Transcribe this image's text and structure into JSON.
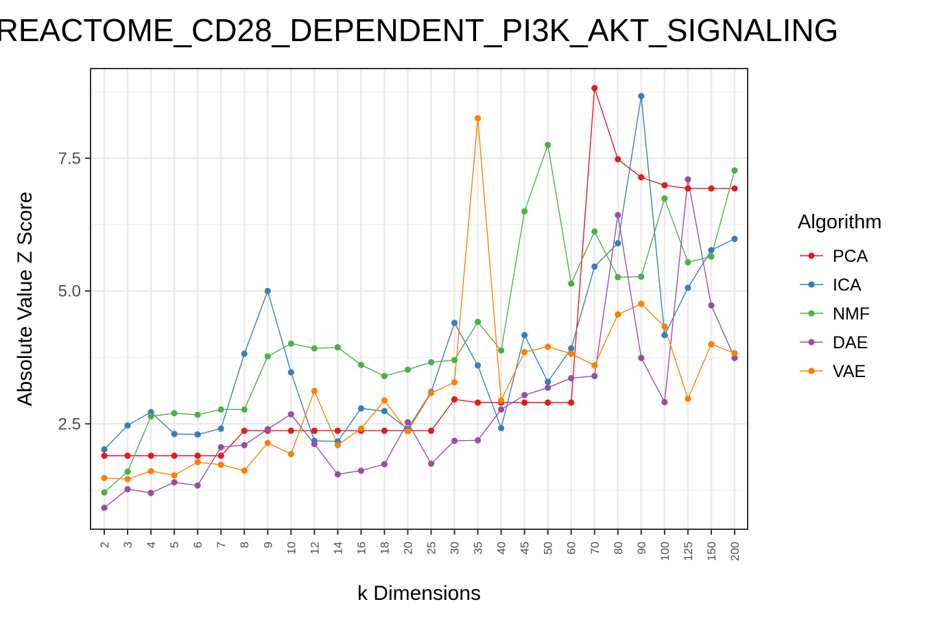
{
  "chart_data": {
    "type": "line",
    "title": "REACTOME_CD28_DEPENDENT_PI3K_AKT_SIGNALING",
    "xlabel": "k Dimensions",
    "ylabel": "Absolute Value Z Score",
    "x_scale": "categorical",
    "categories": [
      "2",
      "3",
      "4",
      "5",
      "6",
      "7",
      "8",
      "9",
      "10",
      "12",
      "14",
      "16",
      "18",
      "20",
      "25",
      "30",
      "35",
      "40",
      "45",
      "50",
      "60",
      "70",
      "80",
      "90",
      "100",
      "125",
      "150",
      "200"
    ],
    "y_ticks": [
      2.5,
      5.0,
      7.5
    ],
    "y_tick_labels": [
      "2.5",
      "5.0",
      "7.5"
    ],
    "ylim": [
      0.6,
      9.3
    ],
    "grid": true,
    "legend": {
      "title": "Algorithm",
      "position": "right"
    },
    "series": [
      {
        "name": "PCA",
        "color": "#e41a1c",
        "values": [
          1.9,
          1.9,
          1.9,
          1.9,
          1.9,
          1.9,
          2.37,
          2.37,
          2.37,
          2.37,
          2.37,
          2.37,
          2.37,
          2.37,
          2.37,
          2.96,
          2.9,
          2.9,
          2.9,
          2.9,
          2.9,
          8.82,
          7.48,
          7.14,
          6.99,
          6.93,
          6.93,
          6.93
        ]
      },
      {
        "name": "ICA",
        "color": "#377eb8",
        "values": [
          2.02,
          2.47,
          2.72,
          2.31,
          2.3,
          2.41,
          3.82,
          5.0,
          3.47,
          2.18,
          2.17,
          2.79,
          2.74,
          2.4,
          3.1,
          4.4,
          3.6,
          2.42,
          4.17,
          3.29,
          3.92,
          5.46,
          5.9,
          8.67,
          4.17,
          5.06,
          5.77,
          5.98
        ]
      },
      {
        "name": "NMF",
        "color": "#4daf4a",
        "values": [
          1.21,
          1.6,
          2.64,
          2.7,
          2.67,
          2.77,
          2.77,
          3.77,
          4.01,
          3.92,
          3.94,
          3.61,
          3.4,
          3.52,
          3.66,
          3.7,
          4.42,
          3.88,
          6.5,
          7.75,
          5.14,
          6.12,
          5.26,
          5.27,
          6.74,
          5.54,
          5.65,
          7.27
        ]
      },
      {
        "name": "DAE",
        "color": "#984ea3",
        "values": [
          0.92,
          1.27,
          1.2,
          1.4,
          1.34,
          2.06,
          2.1,
          2.4,
          2.68,
          2.12,
          1.55,
          1.62,
          1.74,
          2.53,
          1.75,
          2.18,
          2.19,
          2.77,
          3.04,
          3.18,
          3.36,
          3.4,
          6.43,
          3.74,
          2.91,
          7.1,
          4.73,
          3.74
        ]
      },
      {
        "name": "VAE",
        "color": "#ff7f00",
        "values": [
          1.48,
          1.46,
          1.61,
          1.53,
          1.78,
          1.73,
          1.62,
          2.14,
          1.93,
          3.12,
          2.1,
          2.41,
          2.94,
          2.36,
          3.08,
          3.28,
          8.25,
          2.94,
          3.85,
          3.95,
          3.82,
          3.6,
          4.56,
          4.76,
          4.33,
          2.97,
          4.0,
          3.83
        ]
      }
    ]
  }
}
